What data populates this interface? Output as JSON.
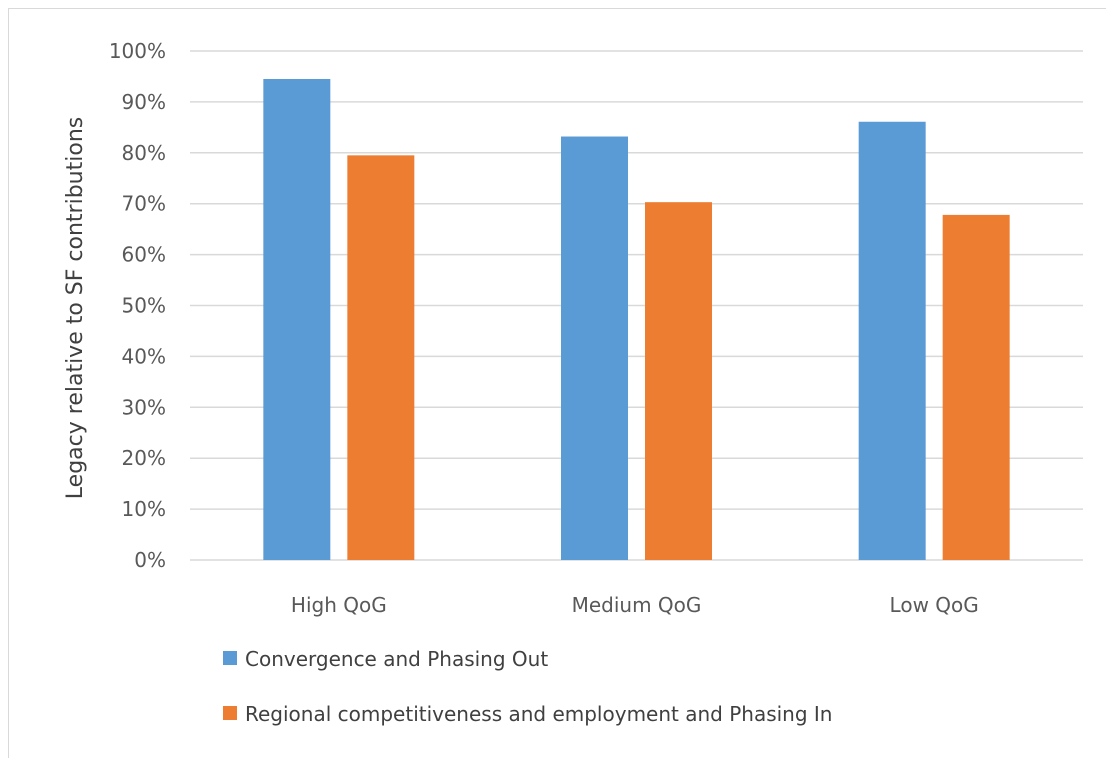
{
  "chart_data": {
    "type": "bar",
    "title": "",
    "xlabel": "",
    "ylabel": "Legacy relative to SF contributions",
    "categories": [
      "High QoG",
      "Medium QoG",
      "Low QoG"
    ],
    "ylim": [
      0,
      100
    ],
    "yticks": [
      "0%",
      "10%",
      "20%",
      "30%",
      "40%",
      "50%",
      "60%",
      "70%",
      "80%",
      "90%",
      "100%"
    ],
    "grid": true,
    "legend_position": "bottom-left",
    "series": [
      {
        "name": "Convergence and Phasing Out",
        "color": "#5b9bd5",
        "values": [
          94.5,
          83.2,
          86.1
        ]
      },
      {
        "name": "Regional competitiveness and employment and Phasing In",
        "color": "#ed7d31",
        "values": [
          79.5,
          70.3,
          67.8
        ]
      }
    ]
  }
}
